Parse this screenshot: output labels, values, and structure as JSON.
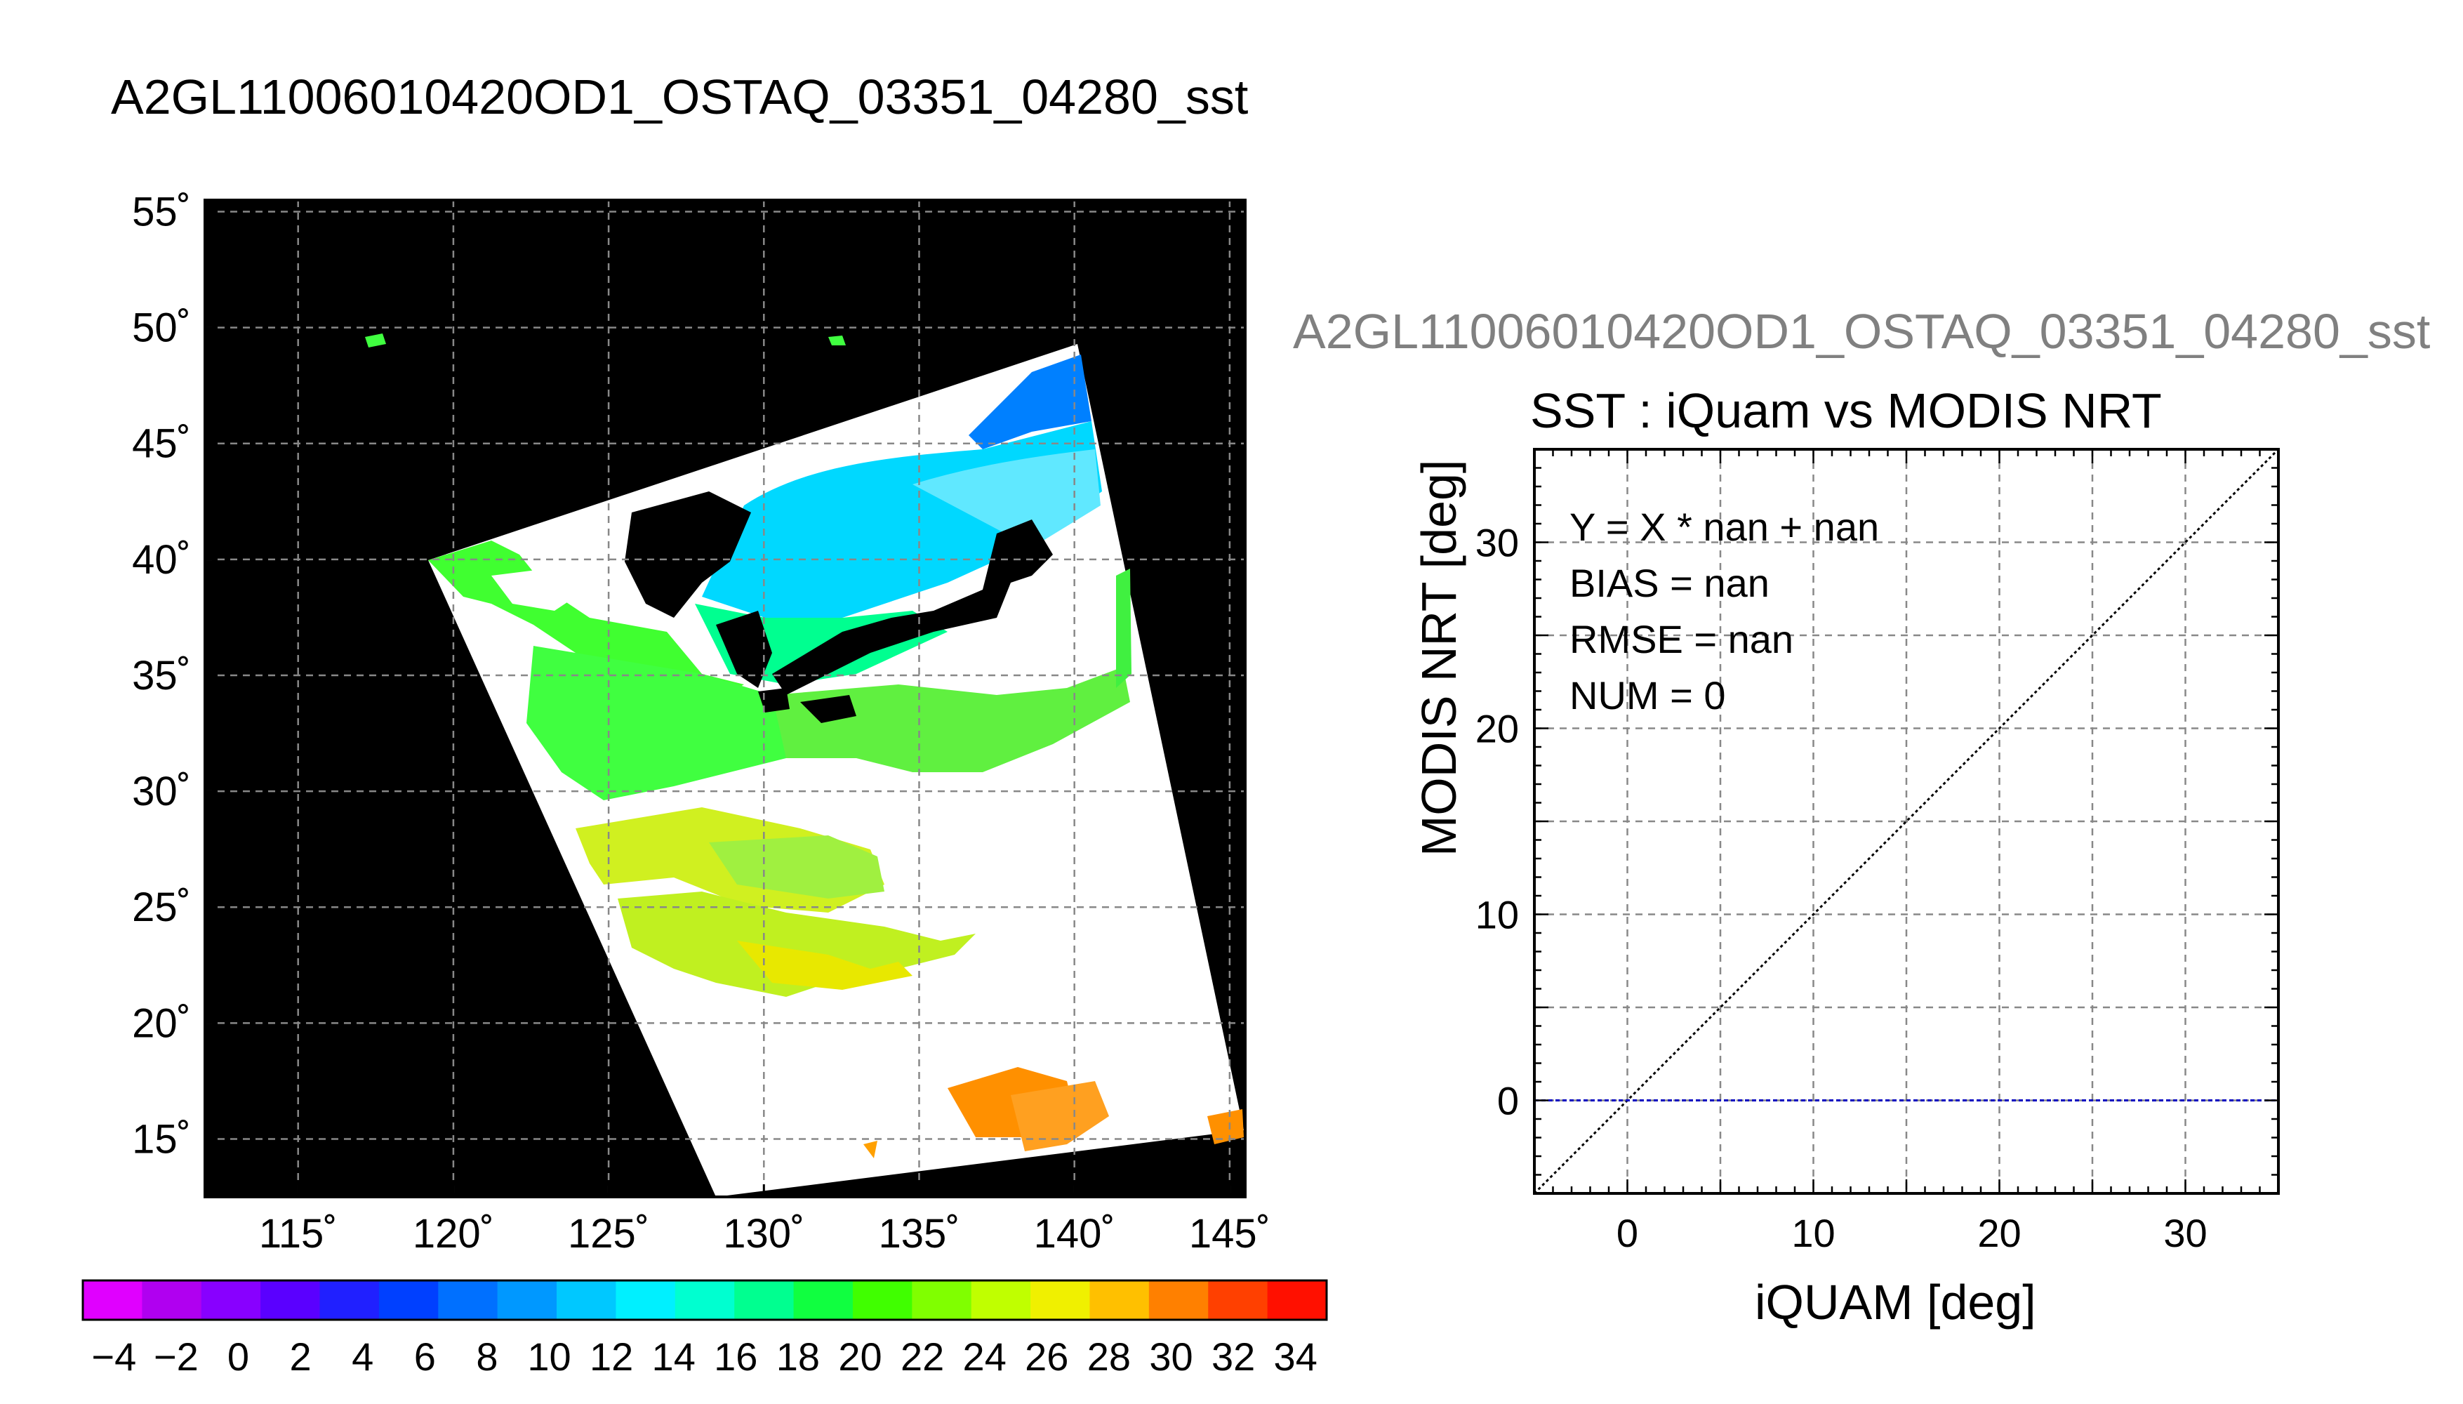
{
  "figure": {
    "map_title": "A2GL11006010420OD1_OSTAQ_03351_04280_sst",
    "scatter_header": "A2GL11006010420OD1_OSTAQ_03351_04280_sst"
  },
  "map": {
    "lon_ticks": [
      "115˚",
      "120˚",
      "125˚",
      "130˚",
      "135˚",
      "140˚",
      "145˚"
    ],
    "lat_ticks": [
      "55˚",
      "50˚",
      "45˚",
      "40˚",
      "35˚",
      "30˚",
      "25˚",
      "20˚",
      "15˚"
    ],
    "lon_range": [
      112,
      145.5
    ],
    "lat_range": [
      12.5,
      55.5
    ],
    "background_color": "#000000",
    "cloud_color": "#ffffff"
  },
  "colorbar": {
    "ticks": [
      "−4",
      "−2",
      "0",
      "2",
      "4",
      "6",
      "8",
      "10",
      "12",
      "14",
      "16",
      "18",
      "20",
      "22",
      "24",
      "26",
      "28",
      "30",
      "32",
      "34"
    ],
    "range": [
      -5,
      35
    ],
    "colors": [
      "#e000ff",
      "#b000f0",
      "#8800ff",
      "#5a00ff",
      "#2020ff",
      "#0040ff",
      "#0070ff",
      "#0098ff",
      "#00c8ff",
      "#00f0ff",
      "#00ffd0",
      "#00ff90",
      "#10ff40",
      "#40ff00",
      "#80ff00",
      "#c0ff00",
      "#f0f000",
      "#ffc000",
      "#ff8000",
      "#ff4000",
      "#ff1000"
    ]
  },
  "chart_data": {
    "type": "scatter",
    "title": "SST : iQuam vs MODIS NRT",
    "xlabel": "iQUAM [deg]",
    "ylabel": "MODIS NRT [deg]",
    "xlim": [
      -5,
      35
    ],
    "ylim": [
      -5,
      35
    ],
    "x_ticks": [
      "0",
      "10",
      "20",
      "30"
    ],
    "y_ticks": [
      "0",
      "10",
      "20",
      "30"
    ],
    "grid": true,
    "points": [],
    "reference_lines": [
      {
        "type": "identity",
        "style": "dotted",
        "color": "#000000"
      },
      {
        "type": "horizontal",
        "y": 0,
        "style": "dashed",
        "color": "#0000c0"
      }
    ],
    "stats": {
      "equation": "Y = X * nan + nan",
      "bias": "BIAS = nan",
      "rmse": "RMSE = nan",
      "num": "NUM = 0"
    }
  }
}
